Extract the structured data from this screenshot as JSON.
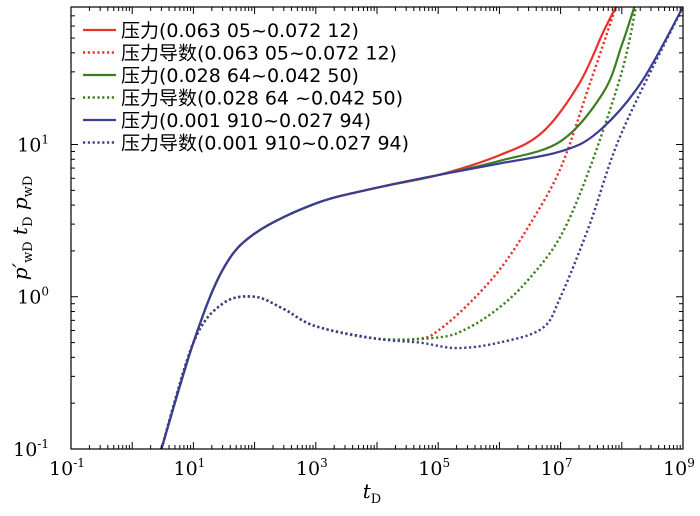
{
  "chart_data": {
    "type": "line",
    "scale": {
      "x": "log",
      "y": "log"
    },
    "xlim": [
      0.1,
      1000000000
    ],
    "ylim": [
      0.1,
      80
    ],
    "x_ticks": [
      {
        "base": "10",
        "exp": "-1",
        "value": 0.1
      },
      {
        "base": "10",
        "exp": "1",
        "value": 10
      },
      {
        "base": "10",
        "exp": "3",
        "value": 1000
      },
      {
        "base": "10",
        "exp": "5",
        "value": 100000
      },
      {
        "base": "10",
        "exp": "7",
        "value": 10000000
      },
      {
        "base": "10",
        "exp": "9",
        "value": 1000000000
      }
    ],
    "y_ticks": [
      {
        "base": "10",
        "exp": "-1",
        "value": 0.1
      },
      {
        "base": "10",
        "exp": "0",
        "value": 1
      },
      {
        "base": "10",
        "exp": "1",
        "value": 10
      }
    ],
    "xlabel": {
      "main": "t",
      "sub": "D"
    },
    "ylabel": {
      "p": "p",
      "prime": "′",
      "sub1": "wD",
      "t": "t",
      "sub2": "D",
      "p2": "p",
      "sub3": "wD"
    },
    "legend_position": "top-left",
    "colors": {
      "red": "#e8312a",
      "green": "#3c7d22",
      "blue": "#3a3d91"
    },
    "series": [
      {
        "name": "压力(0.063 05~0.072 12)",
        "color": "#e8312a",
        "style": "solid",
        "points": [
          [
            3,
            0.1
          ],
          [
            10,
            0.5
          ],
          [
            30,
            1.5
          ],
          [
            100,
            2.6
          ],
          [
            1000,
            4.1
          ],
          [
            10000,
            5.2
          ],
          [
            100000,
            6.3
          ],
          [
            1000000,
            8.5
          ],
          [
            5000000,
            12
          ],
          [
            20000000,
            25
          ],
          [
            50000000,
            55
          ],
          [
            80000000,
            80
          ]
        ]
      },
      {
        "name": "压力导数(0.063 05~0.072 12)",
        "color": "#e8312a",
        "style": "dotted",
        "points": [
          [
            3,
            0.1
          ],
          [
            10,
            0.5
          ],
          [
            30,
            0.9
          ],
          [
            100,
            1.0
          ],
          [
            300,
            0.83
          ],
          [
            1000,
            0.64
          ],
          [
            10000,
            0.53
          ],
          [
            50000,
            0.53
          ],
          [
            100000,
            0.6
          ],
          [
            300000,
            0.88
          ],
          [
            1000000,
            1.5
          ],
          [
            3000000,
            2.9
          ],
          [
            10000000,
            7
          ],
          [
            30000000,
            25
          ],
          [
            80000000,
            80
          ]
        ]
      },
      {
        "name": "压力(0.028 64~0.042 50)",
        "color": "#3c7d22",
        "style": "solid",
        "points": [
          [
            3,
            0.1
          ],
          [
            10,
            0.5
          ],
          [
            30,
            1.5
          ],
          [
            100,
            2.6
          ],
          [
            1000,
            4.1
          ],
          [
            10000,
            5.2
          ],
          [
            100000,
            6.3
          ],
          [
            1000000,
            7.8
          ],
          [
            10000000,
            10.5
          ],
          [
            50000000,
            22
          ],
          [
            100000000,
            45
          ],
          [
            160000000,
            80
          ]
        ]
      },
      {
        "name": "压力导数(0.028 64 ~0.042 50)",
        "color": "#3c7d22",
        "style": "dotted",
        "points": [
          [
            3,
            0.1
          ],
          [
            10,
            0.5
          ],
          [
            30,
            0.9
          ],
          [
            100,
            1.0
          ],
          [
            300,
            0.83
          ],
          [
            1000,
            0.64
          ],
          [
            10000,
            0.53
          ],
          [
            100000,
            0.54
          ],
          [
            300000,
            0.62
          ],
          [
            1000000,
            0.85
          ],
          [
            3000000,
            1.3
          ],
          [
            10000000,
            2.5
          ],
          [
            30000000,
            7
          ],
          [
            100000000,
            30
          ],
          [
            170000000,
            80
          ]
        ]
      },
      {
        "name": "压力(0.001 910~0.027 94)",
        "color": "#3a3d91",
        "style": "solid",
        "points": [
          [
            3,
            0.1
          ],
          [
            10,
            0.5
          ],
          [
            30,
            1.5
          ],
          [
            100,
            2.6
          ],
          [
            1000,
            4.1
          ],
          [
            10000,
            5.2
          ],
          [
            100000,
            6.3
          ],
          [
            1000000,
            7.5
          ],
          [
            10000000,
            9
          ],
          [
            40000000,
            12
          ],
          [
            200000000,
            25
          ],
          [
            1000000000,
            80
          ]
        ]
      },
      {
        "name": "压力导数(0.001 910~0.027 94)",
        "color": "#3a3d91",
        "style": "dotted",
        "points": [
          [
            3,
            0.1
          ],
          [
            10,
            0.5
          ],
          [
            30,
            0.9
          ],
          [
            100,
            1.0
          ],
          [
            300,
            0.83
          ],
          [
            1000,
            0.64
          ],
          [
            10000,
            0.53
          ],
          [
            50000,
            0.5
          ],
          [
            200000,
            0.46
          ],
          [
            1000000,
            0.5
          ],
          [
            5000000,
            0.62
          ],
          [
            10000000,
            1.0
          ],
          [
            30000000,
            3
          ],
          [
            100000000,
            12
          ],
          [
            1000000000,
            80
          ]
        ]
      }
    ]
  }
}
